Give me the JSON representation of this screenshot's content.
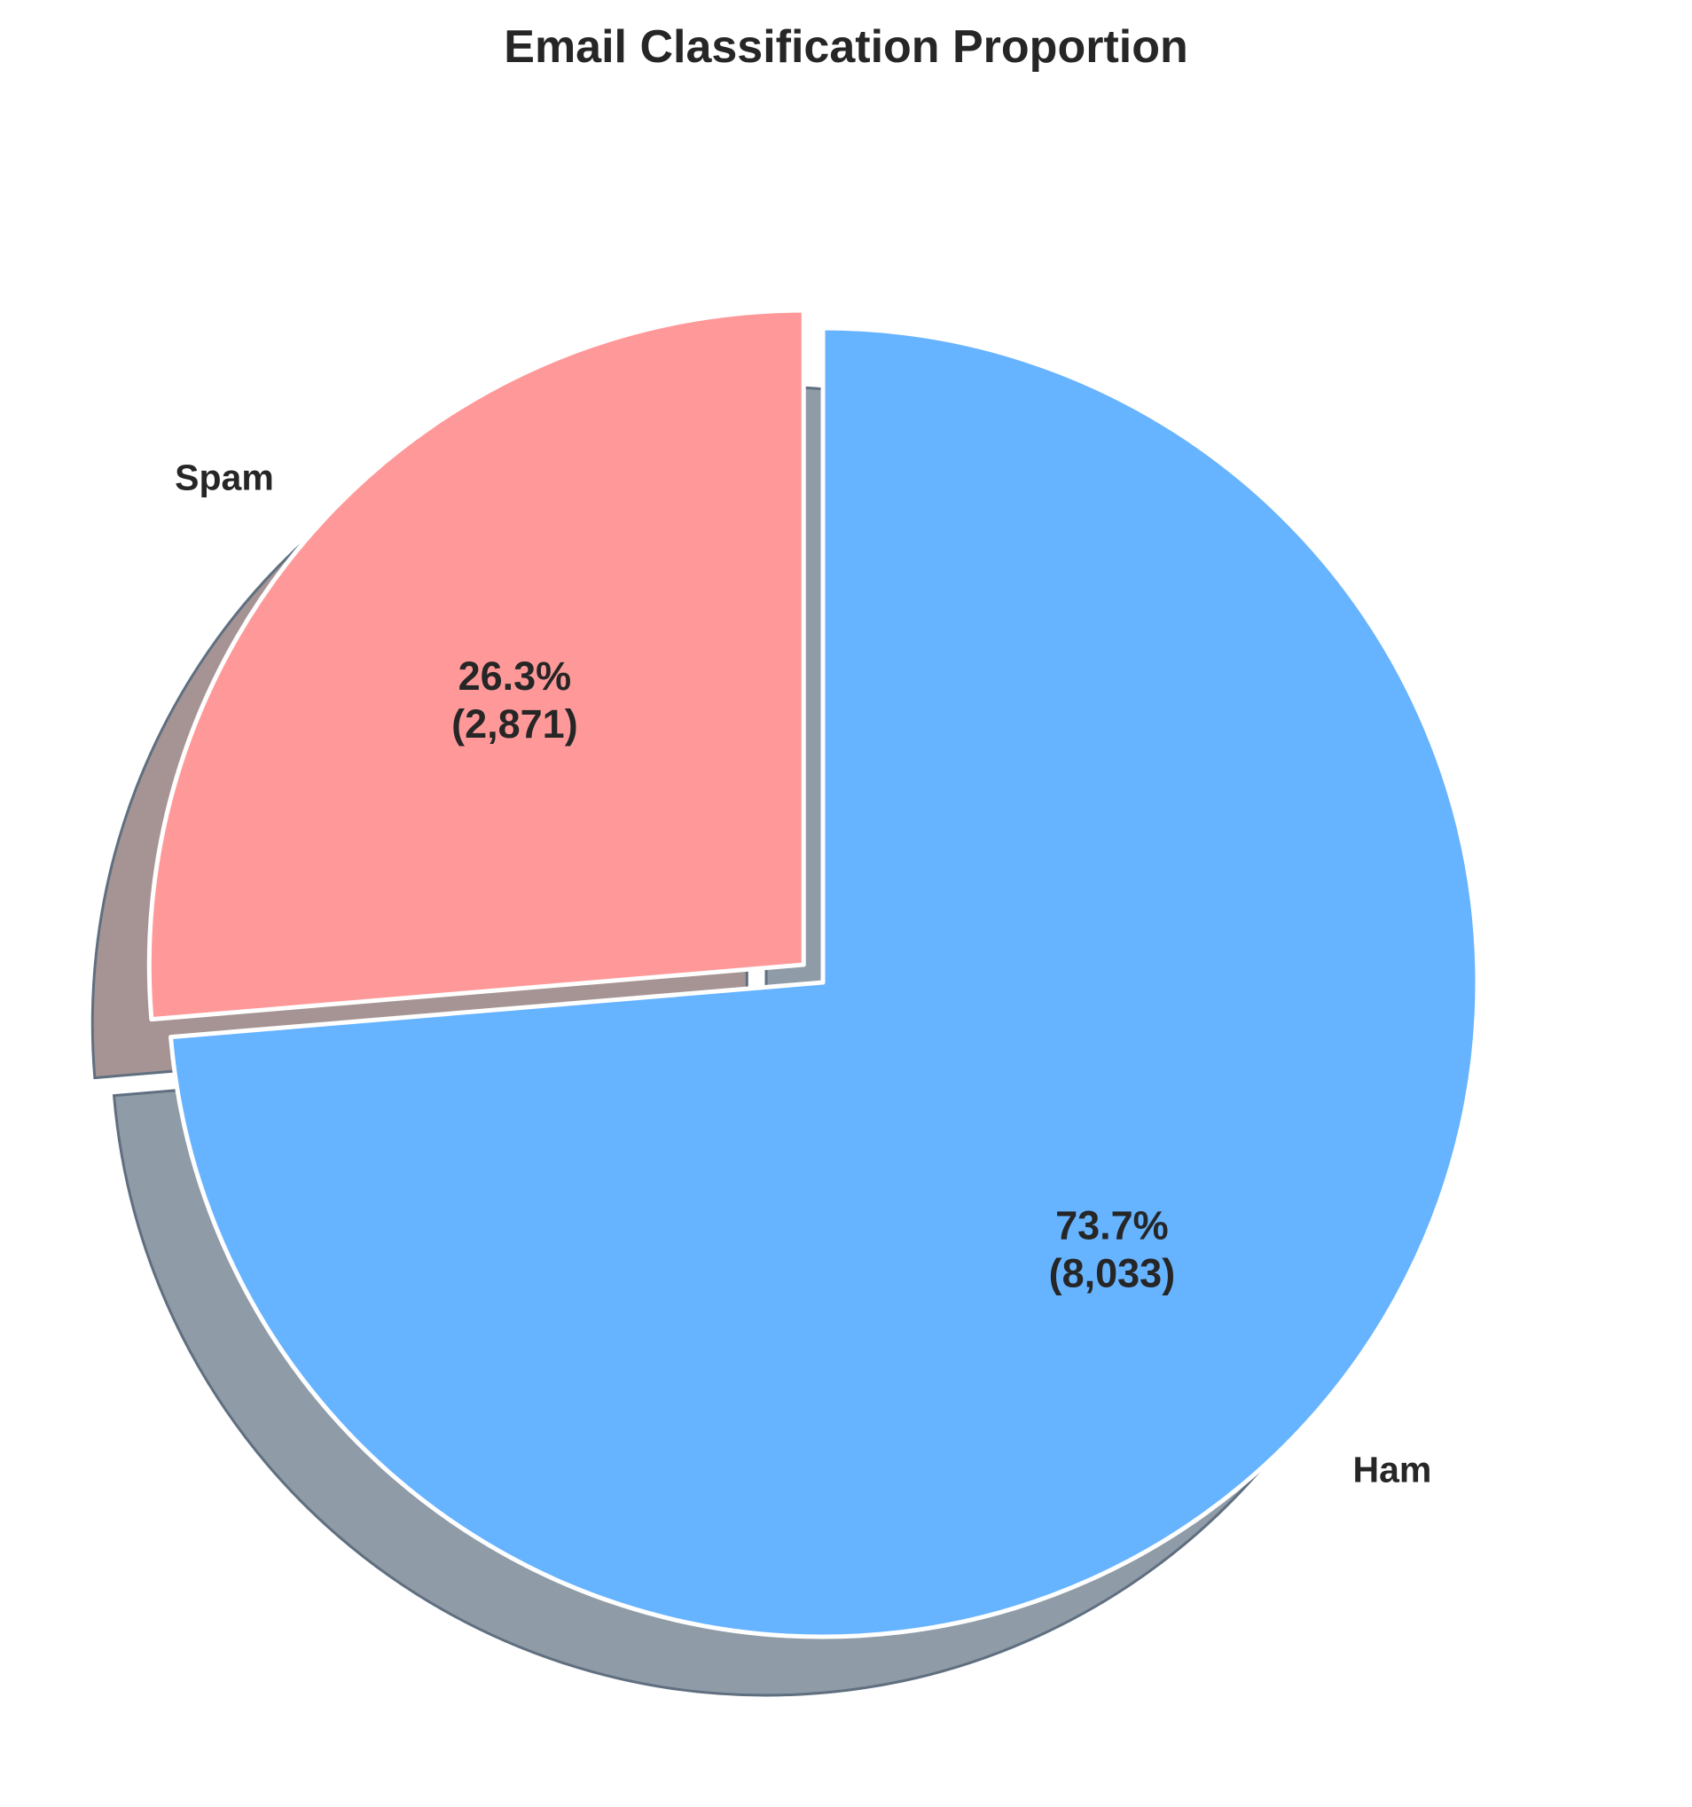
{
  "chart_data": {
    "type": "pie",
    "title": "Email Classification Proportion",
    "categories": [
      "Ham",
      "Spam"
    ],
    "values": [
      8033,
      2871
    ],
    "percent_labels": [
      "73.7%",
      "26.3%"
    ],
    "count_labels": [
      "(8,033)",
      "(2,871)"
    ],
    "colors": [
      "#66b3ff",
      "#ff9999"
    ],
    "shadow_colors": [
      "#8f9ba6",
      "#a69494"
    ],
    "explode": [
      0,
      0.04
    ],
    "start_angle_degrees": 90,
    "direction": "clockwise",
    "shadow": true,
    "legend": "none"
  }
}
